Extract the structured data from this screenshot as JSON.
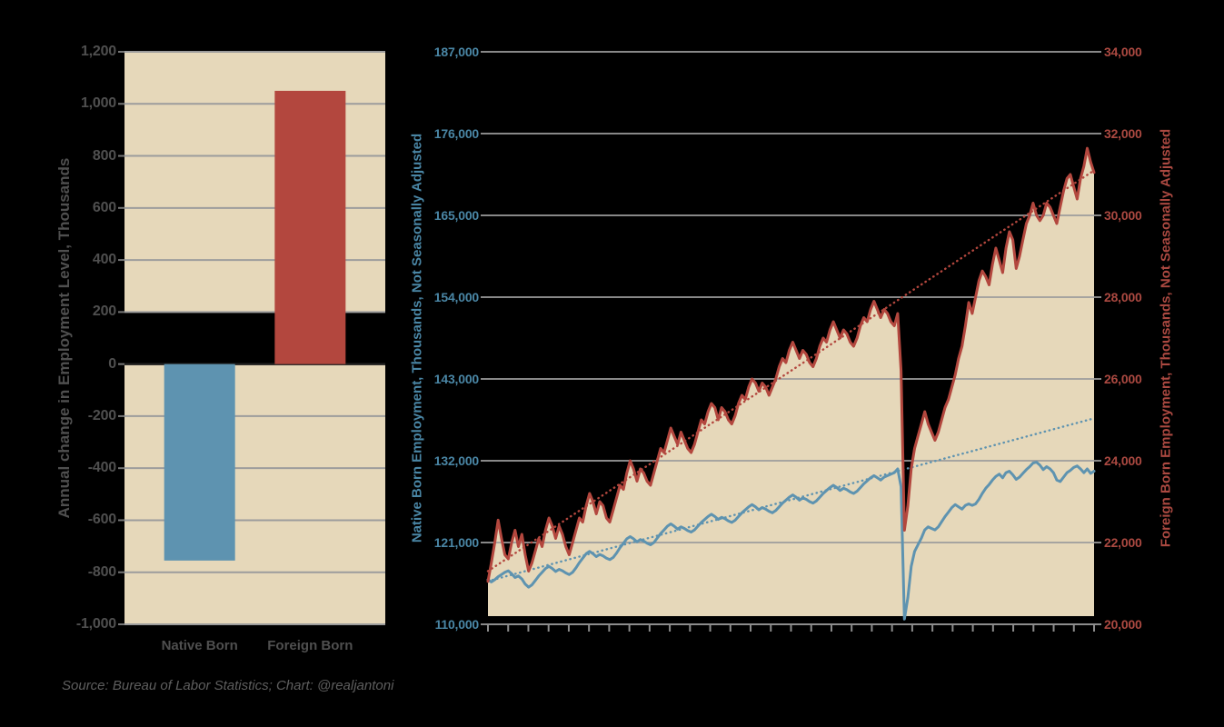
{
  "source_note": "Source: Bureau of Labor Statistics; Chart: @realjantoni",
  "colors": {
    "background": "#000000",
    "plot_bg": "#e6d8ba",
    "grid": "#9c9c9c",
    "axis": "#8c8c8c",
    "zero_line": "#1d1d1d",
    "tick_stub": "#767676",
    "native_blue": "#5e93b0",
    "foreign_red": "#b3473e",
    "blue_text": "#4a86a5",
    "red_text": "#ab4941",
    "gray_text": "#4f4f4f",
    "source_text": "#5e5e5e"
  },
  "chart_data": [
    {
      "type": "bar",
      "title": "",
      "ylabel": "Annual change in Employment Level, Thousands",
      "categories": [
        "Native Born",
        "Foreign Born"
      ],
      "values": [
        -755,
        1050
      ],
      "bar_colors": [
        "#5e93b0",
        "#b3473e"
      ],
      "ylim": [
        -1000,
        1200
      ],
      "grid": true,
      "yticks": [
        {
          "label": "1,200",
          "value": 1200
        },
        {
          "label": "1,000",
          "value": 1000
        },
        {
          "label": "800",
          "value": 800
        },
        {
          "label": "600",
          "value": 600
        },
        {
          "label": "400",
          "value": 400
        },
        {
          "label": "200",
          "value": 200
        },
        {
          "label": "0",
          "value": 0
        },
        {
          "label": "-200",
          "value": -200
        },
        {
          "label": "-400",
          "value": -400
        },
        {
          "label": "-600",
          "value": -600
        },
        {
          "label": "-800",
          "value": -800
        },
        {
          "label": "-1,000",
          "value": -1000
        }
      ],
      "plot_bands": [
        {
          "from": 200,
          "to": 1200
        },
        {
          "from": -1000,
          "to": 0
        }
      ]
    },
    {
      "type": "line",
      "title": "",
      "ylabel_left": "Native Born Employment, Thousands, Not Seasonally Adjusted",
      "ylabel_right": "Foreign Born Employment, Thousands, Not Seasonally Adjusted",
      "ylim_left": [
        110000,
        187000
      ],
      "ylim_right": [
        20000,
        34000
      ],
      "grid": true,
      "legend": "none",
      "x_tick_count": 30,
      "fill_baseline_right": 20200,
      "yticks_left": [
        {
          "label": "187,000",
          "value": 187000
        },
        {
          "label": "176,000",
          "value": 176000
        },
        {
          "label": "165,000",
          "value": 165000
        },
        {
          "label": "154,000",
          "value": 154000
        },
        {
          "label": "143,000",
          "value": 143000
        },
        {
          "label": "132,000",
          "value": 132000
        },
        {
          "label": "121,000",
          "value": 121000
        },
        {
          "label": "110,000",
          "value": 110000
        }
      ],
      "yticks_right": [
        {
          "label": "34,000",
          "value": 34000
        },
        {
          "label": "32,000",
          "value": 32000
        },
        {
          "label": "30,000",
          "value": 30000
        },
        {
          "label": "28,000",
          "value": 28000
        },
        {
          "label": "26,000",
          "value": 26000
        },
        {
          "label": "24,000",
          "value": 24000
        },
        {
          "label": "22,000",
          "value": 22000
        },
        {
          "label": "20,000",
          "value": 20000
        }
      ],
      "series": [
        {
          "name": "Native Born Employment",
          "axis": "left",
          "color": "#5e93b0",
          "values": [
            116000,
            115700,
            116000,
            116400,
            116700,
            117000,
            117200,
            116800,
            116300,
            116500,
            116100,
            115400,
            115000,
            115300,
            115900,
            116500,
            117000,
            117500,
            117800,
            117500,
            117100,
            117400,
            117200,
            116900,
            116700,
            117000,
            117600,
            118300,
            118900,
            119500,
            119800,
            119500,
            119100,
            119400,
            119200,
            118900,
            118700,
            119000,
            119600,
            120300,
            120900,
            121500,
            121800,
            121500,
            121100,
            121400,
            121200,
            120900,
            120700,
            121000,
            121600,
            122200,
            122700,
            123200,
            123500,
            123200,
            122800,
            123100,
            122900,
            122600,
            122400,
            122700,
            123200,
            123700,
            124100,
            124500,
            124800,
            124500,
            124100,
            124400,
            124200,
            123900,
            123700,
            124000,
            124500,
            125000,
            125400,
            125800,
            126100,
            125800,
            125400,
            125700,
            125500,
            125200,
            125000,
            125300,
            125800,
            126300,
            126700,
            127100,
            127400,
            127100,
            126700,
            127000,
            126800,
            126500,
            126300,
            126600,
            127100,
            127600,
            128000,
            128400,
            128700,
            128400,
            128000,
            128300,
            128100,
            127800,
            127600,
            127900,
            128400,
            128900,
            129300,
            129700,
            130000,
            129700,
            129400,
            129800,
            130000,
            130200,
            130400,
            130900,
            128500,
            110700,
            113600,
            117800,
            119800,
            120700,
            121600,
            122700,
            123100,
            122900,
            122700,
            123100,
            123800,
            124500,
            125100,
            125700,
            126100,
            125800,
            125500,
            126000,
            126200,
            126000,
            126200,
            126800,
            127600,
            128300,
            128800,
            129400,
            129900,
            130200,
            129700,
            130400,
            130600,
            130100,
            129500,
            129800,
            130300,
            130800,
            131200,
            131700,
            131800,
            131400,
            130800,
            131200,
            130900,
            130400,
            129400,
            129200,
            129800,
            130400,
            130700,
            131100,
            131300,
            130900,
            130400,
            130900,
            130300,
            130600
          ]
        },
        {
          "name": "Foreign Born Employment",
          "axis": "right",
          "color": "#b3473e",
          "area_fill": "#e6d8ba",
          "values": [
            21050,
            21500,
            22000,
            22550,
            22100,
            21700,
            21600,
            22000,
            22300,
            21900,
            22200,
            21700,
            21300,
            21500,
            21800,
            22100,
            21900,
            22300,
            22600,
            22400,
            22100,
            22400,
            22200,
            21900,
            21700,
            22000,
            22300,
            22600,
            22500,
            22900,
            23200,
            23000,
            22700,
            23000,
            22900,
            22600,
            22500,
            22800,
            23100,
            23400,
            23300,
            23700,
            24000,
            23800,
            23500,
            23800,
            23700,
            23500,
            23400,
            23700,
            24000,
            24300,
            24200,
            24500,
            24800,
            24600,
            24400,
            24700,
            24500,
            24300,
            24200,
            24400,
            24700,
            25000,
            24900,
            25200,
            25400,
            25300,
            25000,
            25300,
            25200,
            25000,
            24900,
            25100,
            25400,
            25600,
            25500,
            25800,
            26000,
            25900,
            25700,
            25900,
            25800,
            25600,
            25800,
            26000,
            26300,
            26500,
            26400,
            26700,
            26900,
            26700,
            26500,
            26700,
            26600,
            26400,
            26300,
            26500,
            26800,
            27000,
            26900,
            27200,
            27400,
            27200,
            27000,
            27200,
            27100,
            26900,
            26800,
            27000,
            27300,
            27500,
            27400,
            27700,
            27900,
            27700,
            27500,
            27700,
            27600,
            27400,
            27300,
            27600,
            26200,
            22300,
            22900,
            23800,
            24300,
            24600,
            24900,
            25200,
            24900,
            24700,
            24500,
            24700,
            25000,
            25300,
            25500,
            25800,
            26100,
            26500,
            26800,
            27300,
            27870,
            27600,
            28000,
            28400,
            28640,
            28500,
            28300,
            28800,
            29200,
            28900,
            28600,
            29200,
            29600,
            29400,
            28700,
            29000,
            29400,
            29800,
            30000,
            30300,
            30000,
            29870,
            30000,
            30300,
            30200,
            30000,
            29800,
            30200,
            30600,
            30900,
            31000,
            30700,
            30400,
            30900,
            31200,
            31640,
            31300,
            31050
          ]
        }
      ],
      "trend_lines": [
        {
          "name": "Native Born linear trend",
          "axis": "left",
          "color": "#5e93b0",
          "endpoints": [
            115800,
            137700
          ]
        },
        {
          "name": "Foreign Born linear trend",
          "axis": "right",
          "color": "#b3473e",
          "endpoints": [
            21300,
            31100
          ]
        }
      ]
    }
  ]
}
